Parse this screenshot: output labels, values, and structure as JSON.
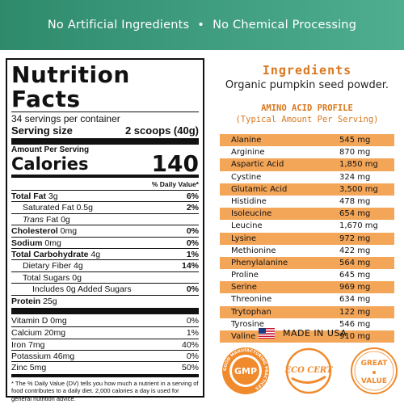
{
  "banner": {
    "left": "No Artificial Ingredients",
    "dot": "•",
    "right": "No Chemical Processing"
  },
  "nutrition": {
    "title": "Nutrition Facts",
    "servings": "34 servings per container",
    "serving_size_label": "Serving size",
    "serving_size_value": "2 scoops (40g)",
    "amount_per_serving": "Amount Per Serving",
    "calories_label": "Calories",
    "calories_value": "140",
    "dv_header": "% Daily Value*",
    "rows": [
      {
        "label": "Total Fat",
        "amount": " 3g",
        "pct": "6%"
      },
      {
        "label": "Saturated Fat",
        "amount": " 0.5g",
        "pct": "2%"
      },
      {
        "label": "Trans",
        "amount": " Fat 0g",
        "pct": ""
      },
      {
        "label": "Cholesterol",
        "amount": " 0mg",
        "pct": "0%"
      },
      {
        "label": "Sodium",
        "amount": " 0mg",
        "pct": "0%"
      },
      {
        "label": "Total Carbohydrate",
        "amount": " 4g",
        "pct": "1%"
      },
      {
        "label": "Dietary Fiber",
        "amount": " 4g",
        "pct": "14%"
      },
      {
        "label": "Total Sugars",
        "amount": " 0g",
        "pct": ""
      },
      {
        "label": "Includes 0g Added Sugars",
        "amount": "",
        "pct": "0%"
      },
      {
        "label": "Protein",
        "amount": " 25g",
        "pct": ""
      }
    ],
    "vitamins": [
      {
        "label": "Vitamin D 0mg",
        "pct": "0%"
      },
      {
        "label": "Calcium 20mg",
        "pct": "1%"
      },
      {
        "label": "Iron 7mg",
        "pct": "40%"
      },
      {
        "label": "Potassium 46mg",
        "pct": "0%"
      },
      {
        "label": "Zinc 5mg",
        "pct": "50%"
      }
    ],
    "footnote": "* The % Daily Value (DV) tells you how much a nutrient in a serving of food contributes to a daily diet. 2,000 calories a day is used for general nutrition advice."
  },
  "ingredients": {
    "title": "Ingredients",
    "text": "Organic pumpkin seed powder."
  },
  "amino": {
    "title": "AMINO ACID PROFILE",
    "subtitle": "(Typical Amount Per Serving)",
    "rows": [
      {
        "name": "Alanine",
        "value": "545 mg"
      },
      {
        "name": "Arginine",
        "value": "870 mg"
      },
      {
        "name": "Aspartic Acid",
        "value": "1,850 mg"
      },
      {
        "name": "Cystine",
        "value": "324 mg"
      },
      {
        "name": "Glutamic Acid",
        "value": "3,500 mg"
      },
      {
        "name": "Histidine",
        "value": "478 mg"
      },
      {
        "name": "Isoleucine",
        "value": "654 mg"
      },
      {
        "name": "Leucine",
        "value": "1,670 mg"
      },
      {
        "name": "Lysine",
        "value": "972 mg"
      },
      {
        "name": "Methionine",
        "value": "422 mg"
      },
      {
        "name": "Phenylalanine",
        "value": "564 mg"
      },
      {
        "name": "Proline",
        "value": "645 mg"
      },
      {
        "name": "Serine",
        "value": "969 mg"
      },
      {
        "name": "Threonine",
        "value": "634 mg"
      },
      {
        "name": "Trytophan",
        "value": "122 mg"
      },
      {
        "name": "Tyrosine",
        "value": "546 mg"
      },
      {
        "name": "Valine",
        "value": "910 mg"
      }
    ]
  },
  "made_in": "MADE IN USA",
  "badges": {
    "gmp_text": "GMP",
    "gmp_ring": "GOOD MANUFACTURING PRACTICES",
    "eco": "ECO CERT",
    "great_top": "GREAT",
    "great_bottom": "VALUE"
  },
  "colors": {
    "banner": "#3a9a7b",
    "accent": "#d9781f",
    "stripe": "#f3a558"
  }
}
